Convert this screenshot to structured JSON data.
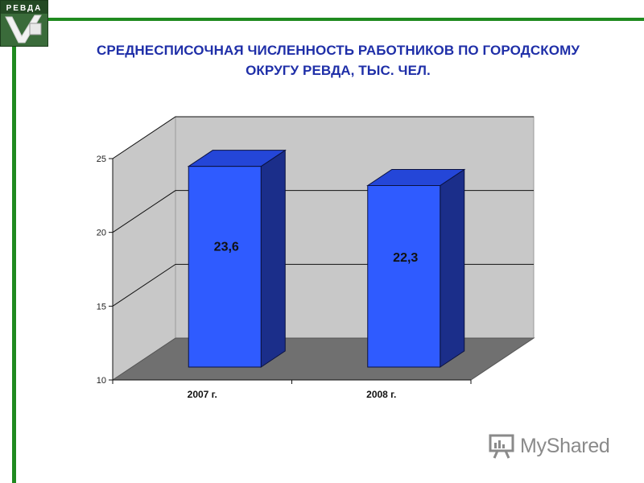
{
  "logo": {
    "text": "РЕВДА"
  },
  "title": {
    "line1": "СРЕДНЕСПИСОЧНАЯ ЧИСЛЕННОСТЬ РАБОТНИКОВ ПО ГОРОДСКОМУ",
    "line2": "ОКРУГУ РЕВДА, ТЫС. ЧЕЛ."
  },
  "watermark": {
    "text": "MyShared",
    "icon": "presentation-board-icon"
  },
  "colors": {
    "frame": "#1f8a1f",
    "title": "#1f2fa8",
    "bar_front": "#2f5bff",
    "bar_top": "#2446d8",
    "bar_side": "#1b2e8a",
    "wall": "#c8c8c8",
    "floor": "#707070"
  },
  "chart_data": {
    "type": "bar",
    "categories": [
      "2007 г.",
      "2008 г."
    ],
    "values": [
      23.6,
      22.3
    ],
    "value_labels": [
      "23,6",
      "22,3"
    ],
    "title": "СРЕДНЕСПИСОЧНАЯ ЧИСЛЕННОСТЬ РАБОТНИКОВ ПО ГОРОДСКОМУ ОКРУГУ РЕВДА, ТЫС. ЧЕЛ.",
    "xlabel": "",
    "ylabel": "",
    "ylim": [
      10,
      25
    ],
    "yticks": [
      10,
      15,
      20,
      25
    ],
    "grid": true,
    "legend": "none",
    "style": "3d"
  }
}
